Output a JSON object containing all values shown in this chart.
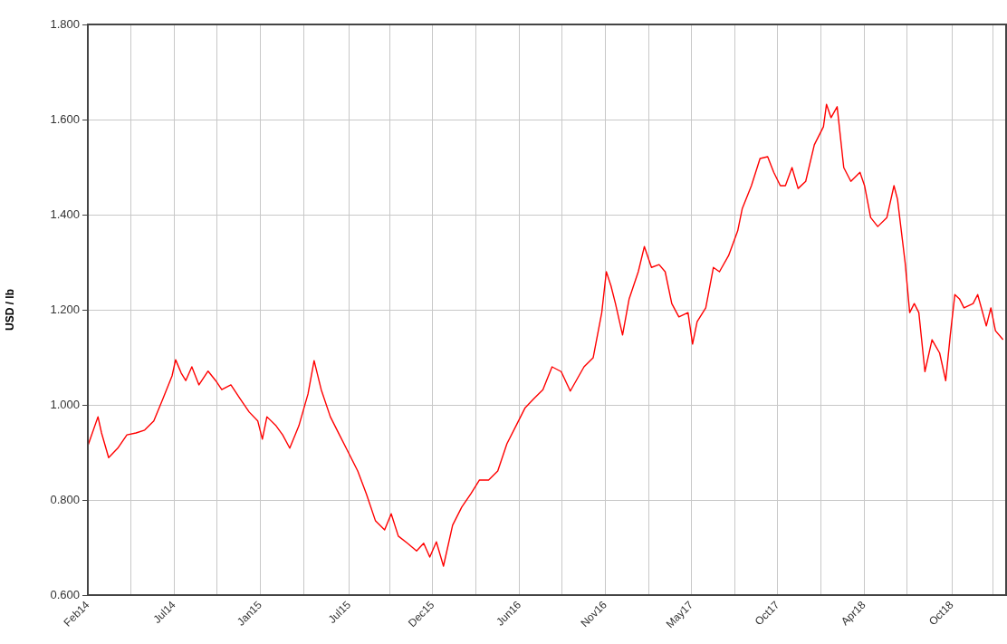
{
  "chart_data": {
    "type": "line",
    "ylabel": "USD / lb",
    "grid": true,
    "legend": false,
    "marker": "none",
    "line_style": "solid",
    "xlim": [
      "2014-02-01",
      "2019-01-16"
    ],
    "xticks": [
      {
        "value": "2014-02-01",
        "label": "Feb14"
      },
      {
        "value": "2014-04-27",
        "label": null
      },
      {
        "value": "2014-07-21",
        "label": "Jul14"
      },
      {
        "value": "2014-10-14",
        "label": null
      },
      {
        "value": "2015-01-07",
        "label": "Jan15"
      },
      {
        "value": "2015-04-02",
        "label": null
      },
      {
        "value": "2015-07-01",
        "label": "Jul15"
      },
      {
        "value": "2015-09-19",
        "label": null
      },
      {
        "value": "2015-12-13",
        "label": "Dec15"
      },
      {
        "value": "2016-03-07",
        "label": null
      },
      {
        "value": "2016-06-01",
        "label": "Jun16"
      },
      {
        "value": "2016-08-24",
        "label": null
      },
      {
        "value": "2016-11-17",
        "label": "Nov16"
      },
      {
        "value": "2017-02-10",
        "label": null
      },
      {
        "value": "2017-05-06",
        "label": "May17"
      },
      {
        "value": "2017-07-30",
        "label": null
      },
      {
        "value": "2017-10-23",
        "label": "Oct17"
      },
      {
        "value": "2018-01-16",
        "label": null
      },
      {
        "value": "2018-04-11",
        "label": "Apr18"
      },
      {
        "value": "2018-07-05",
        "label": null
      },
      {
        "value": "2018-10-01",
        "label": "Oct18"
      },
      {
        "value": "2018-12-22",
        "label": null
      }
    ],
    "ylim": [
      0.6,
      1.8
    ],
    "yticks": [
      {
        "value": 0.6,
        "label": "0.600"
      },
      {
        "value": 0.8,
        "label": "0.800"
      },
      {
        "value": 1.0,
        "label": "1.000"
      },
      {
        "value": 1.2,
        "label": "1.200"
      },
      {
        "value": 1.4,
        "label": "1.400"
      },
      {
        "value": 1.6,
        "label": "1.600"
      },
      {
        "value": 1.8,
        "label": "1.800"
      }
    ],
    "series": [
      {
        "color": "#ff0000",
        "x": [
          "2014-02-01",
          "2014-02-21",
          "2014-02-28",
          "2014-03-14",
          "2014-04-01",
          "2014-04-19",
          "2014-05-07",
          "2014-05-24",
          "2014-06-11",
          "2014-06-29",
          "2014-07-17",
          "2014-07-24",
          "2014-08-04",
          "2014-08-13",
          "2014-08-25",
          "2014-09-08",
          "2014-09-26",
          "2014-10-11",
          "2014-10-23",
          "2014-11-10",
          "2014-11-28",
          "2014-12-16",
          "2015-01-02",
          "2015-01-11",
          "2015-01-20",
          "2015-02-07",
          "2015-02-20",
          "2015-03-06",
          "2015-03-24",
          "2015-04-11",
          "2015-04-23",
          "2015-05-07",
          "2015-05-25",
          "2015-06-12",
          "2015-06-30",
          "2015-07-18",
          "2015-08-04",
          "2015-08-22",
          "2015-09-09",
          "2015-09-22",
          "2015-10-06",
          "2015-10-24",
          "2015-11-11",
          "2015-11-25",
          "2015-12-07",
          "2015-12-20",
          "2016-01-03",
          "2016-01-21",
          "2016-02-08",
          "2016-02-26",
          "2016-03-14",
          "2016-04-01",
          "2016-04-19",
          "2016-05-07",
          "2016-05-25",
          "2016-06-12",
          "2016-06-29",
          "2016-07-17",
          "2016-08-04",
          "2016-08-22",
          "2016-09-09",
          "2016-10-06",
          "2016-10-24",
          "2016-11-10",
          "2016-11-19",
          "2016-11-28",
          "2016-12-07",
          "2016-12-21",
          "2017-01-03",
          "2017-01-21",
          "2017-02-02",
          "2017-02-16",
          "2017-03-03",
          "2017-03-15",
          "2017-03-28",
          "2017-04-11",
          "2017-04-29",
          "2017-05-08",
          "2017-05-17",
          "2017-06-03",
          "2017-06-18",
          "2017-06-30",
          "2017-07-18",
          "2017-08-05",
          "2017-08-14",
          "2017-09-01",
          "2017-09-18",
          "2017-10-03",
          "2017-10-15",
          "2017-10-28",
          "2017-11-07",
          "2017-11-20",
          "2017-12-02",
          "2017-12-17",
          "2018-01-03",
          "2018-01-21",
          "2018-01-27",
          "2018-02-05",
          "2018-02-17",
          "2018-03-02",
          "2018-03-16",
          "2018-04-03",
          "2018-04-12",
          "2018-04-24",
          "2018-05-08",
          "2018-05-26",
          "2018-06-09",
          "2018-06-16",
          "2018-07-01",
          "2018-07-10",
          "2018-07-19",
          "2018-07-28",
          "2018-08-09",
          "2018-08-23",
          "2018-09-07",
          "2018-09-19",
          "2018-09-28",
          "2018-10-07",
          "2018-10-16",
          "2018-10-25",
          "2018-11-12",
          "2018-11-21",
          "2018-12-08",
          "2018-12-17",
          "2018-12-26",
          "2019-01-10"
        ],
        "values": [
          0.914,
          0.975,
          0.941,
          0.889,
          0.909,
          0.937,
          0.941,
          0.947,
          0.966,
          1.013,
          1.061,
          1.095,
          1.067,
          1.051,
          1.08,
          1.042,
          1.071,
          1.051,
          1.032,
          1.042,
          1.013,
          0.985,
          0.966,
          0.928,
          0.975,
          0.956,
          0.937,
          0.909,
          0.956,
          1.023,
          1.093,
          1.032,
          0.975,
          0.937,
          0.899,
          0.861,
          0.813,
          0.756,
          0.737,
          0.771,
          0.724,
          0.709,
          0.693,
          0.709,
          0.68,
          0.712,
          0.661,
          0.747,
          0.785,
          0.813,
          0.842,
          0.842,
          0.861,
          0.918,
          0.956,
          0.994,
          1.013,
          1.032,
          1.08,
          1.07,
          1.029,
          1.08,
          1.099,
          1.194,
          1.28,
          1.251,
          1.213,
          1.147,
          1.223,
          1.28,
          1.333,
          1.289,
          1.295,
          1.28,
          1.213,
          1.185,
          1.194,
          1.128,
          1.175,
          1.204,
          1.289,
          1.28,
          1.314,
          1.366,
          1.413,
          1.461,
          1.518,
          1.522,
          1.489,
          1.461,
          1.461,
          1.499,
          1.455,
          1.47,
          1.547,
          1.585,
          1.632,
          1.604,
          1.627,
          1.499,
          1.47,
          1.489,
          1.461,
          1.394,
          1.375,
          1.394,
          1.461,
          1.432,
          1.299,
          1.194,
          1.213,
          1.194,
          1.07,
          1.137,
          1.109,
          1.051,
          1.147,
          1.232,
          1.223,
          1.204,
          1.213,
          1.232,
          1.166,
          1.204,
          1.156,
          1.137
        ]
      }
    ]
  }
}
